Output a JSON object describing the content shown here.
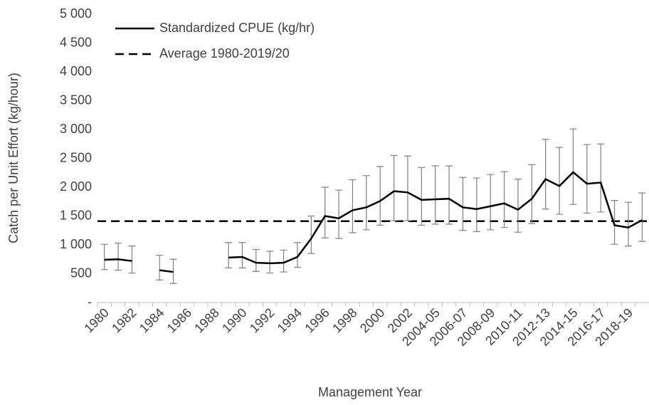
{
  "chart_data": {
    "type": "line",
    "y_label": "Catch per Unit Effort (kg/hour)",
    "x_label": "Management Year",
    "categories": [
      "1980",
      null,
      "1982",
      null,
      "1984",
      null,
      "1986",
      null,
      "1988",
      null,
      "1990",
      null,
      "1992",
      null,
      "1994",
      null,
      "1996",
      null,
      "1998",
      null,
      "2000",
      null,
      "2002",
      null,
      "2004-05",
      null,
      "2006-07",
      null,
      "2008-09",
      null,
      "2010-11",
      null,
      "2012-13",
      null,
      "2014-15",
      null,
      "2016-17",
      null,
      "2018-19",
      null
    ],
    "series": [
      {
        "name": "Standardized CPUE (kg/hr)",
        "color": "#000000",
        "values": [
          740,
          750,
          720,
          null,
          560,
          530,
          null,
          null,
          null,
          780,
          790,
          690,
          680,
          690,
          790,
          1110,
          1500,
          1460,
          1600,
          1650,
          1760,
          1930,
          1910,
          1780,
          1790,
          1800,
          1650,
          1620,
          1670,
          1720,
          1610,
          1800,
          2140,
          2020,
          2260,
          2060,
          2080,
          1340,
          1300,
          1430
        ],
        "upper": [
          1010,
          1030,
          980,
          null,
          820,
          750,
          null,
          null,
          null,
          1040,
          1040,
          920,
          890,
          910,
          1040,
          1500,
          2000,
          1950,
          2130,
          2200,
          2360,
          2550,
          2540,
          2340,
          2370,
          2370,
          2170,
          2160,
          2220,
          2270,
          2140,
          2390,
          2830,
          2690,
          3010,
          2740,
          2750,
          1770,
          1740,
          1900
        ],
        "lower": [
          570,
          560,
          510,
          null,
          390,
          330,
          null,
          null,
          null,
          600,
          600,
          540,
          510,
          530,
          610,
          850,
          1120,
          1110,
          1210,
          1260,
          1340,
          1420,
          1420,
          1340,
          1360,
          1360,
          1250,
          1230,
          1260,
          1300,
          1220,
          1370,
          1620,
          1530,
          1700,
          1550,
          1570,
          1010,
          980,
          1060
        ]
      }
    ],
    "average": {
      "name": "Average 1980-2019/20",
      "color": "#000000",
      "value": 1410
    },
    "ylim": [
      0,
      5000
    ],
    "yticks": [
      {
        "value": 0,
        "label": "-"
      },
      500,
      {
        "value": 1000,
        "label": "1 000"
      },
      {
        "value": 1500,
        "label": "1 500"
      },
      {
        "value": 2000,
        "label": "2 000"
      },
      {
        "value": 2500,
        "label": "2 500"
      },
      {
        "value": 3000,
        "label": "3 000"
      },
      {
        "value": 3500,
        "label": "3 500"
      },
      {
        "value": 4000,
        "label": "4 000"
      },
      {
        "value": 4500,
        "label": "4 500"
      },
      {
        "value": 5000,
        "label": "5 000"
      }
    ],
    "grid": false,
    "legend": "top-left"
  }
}
